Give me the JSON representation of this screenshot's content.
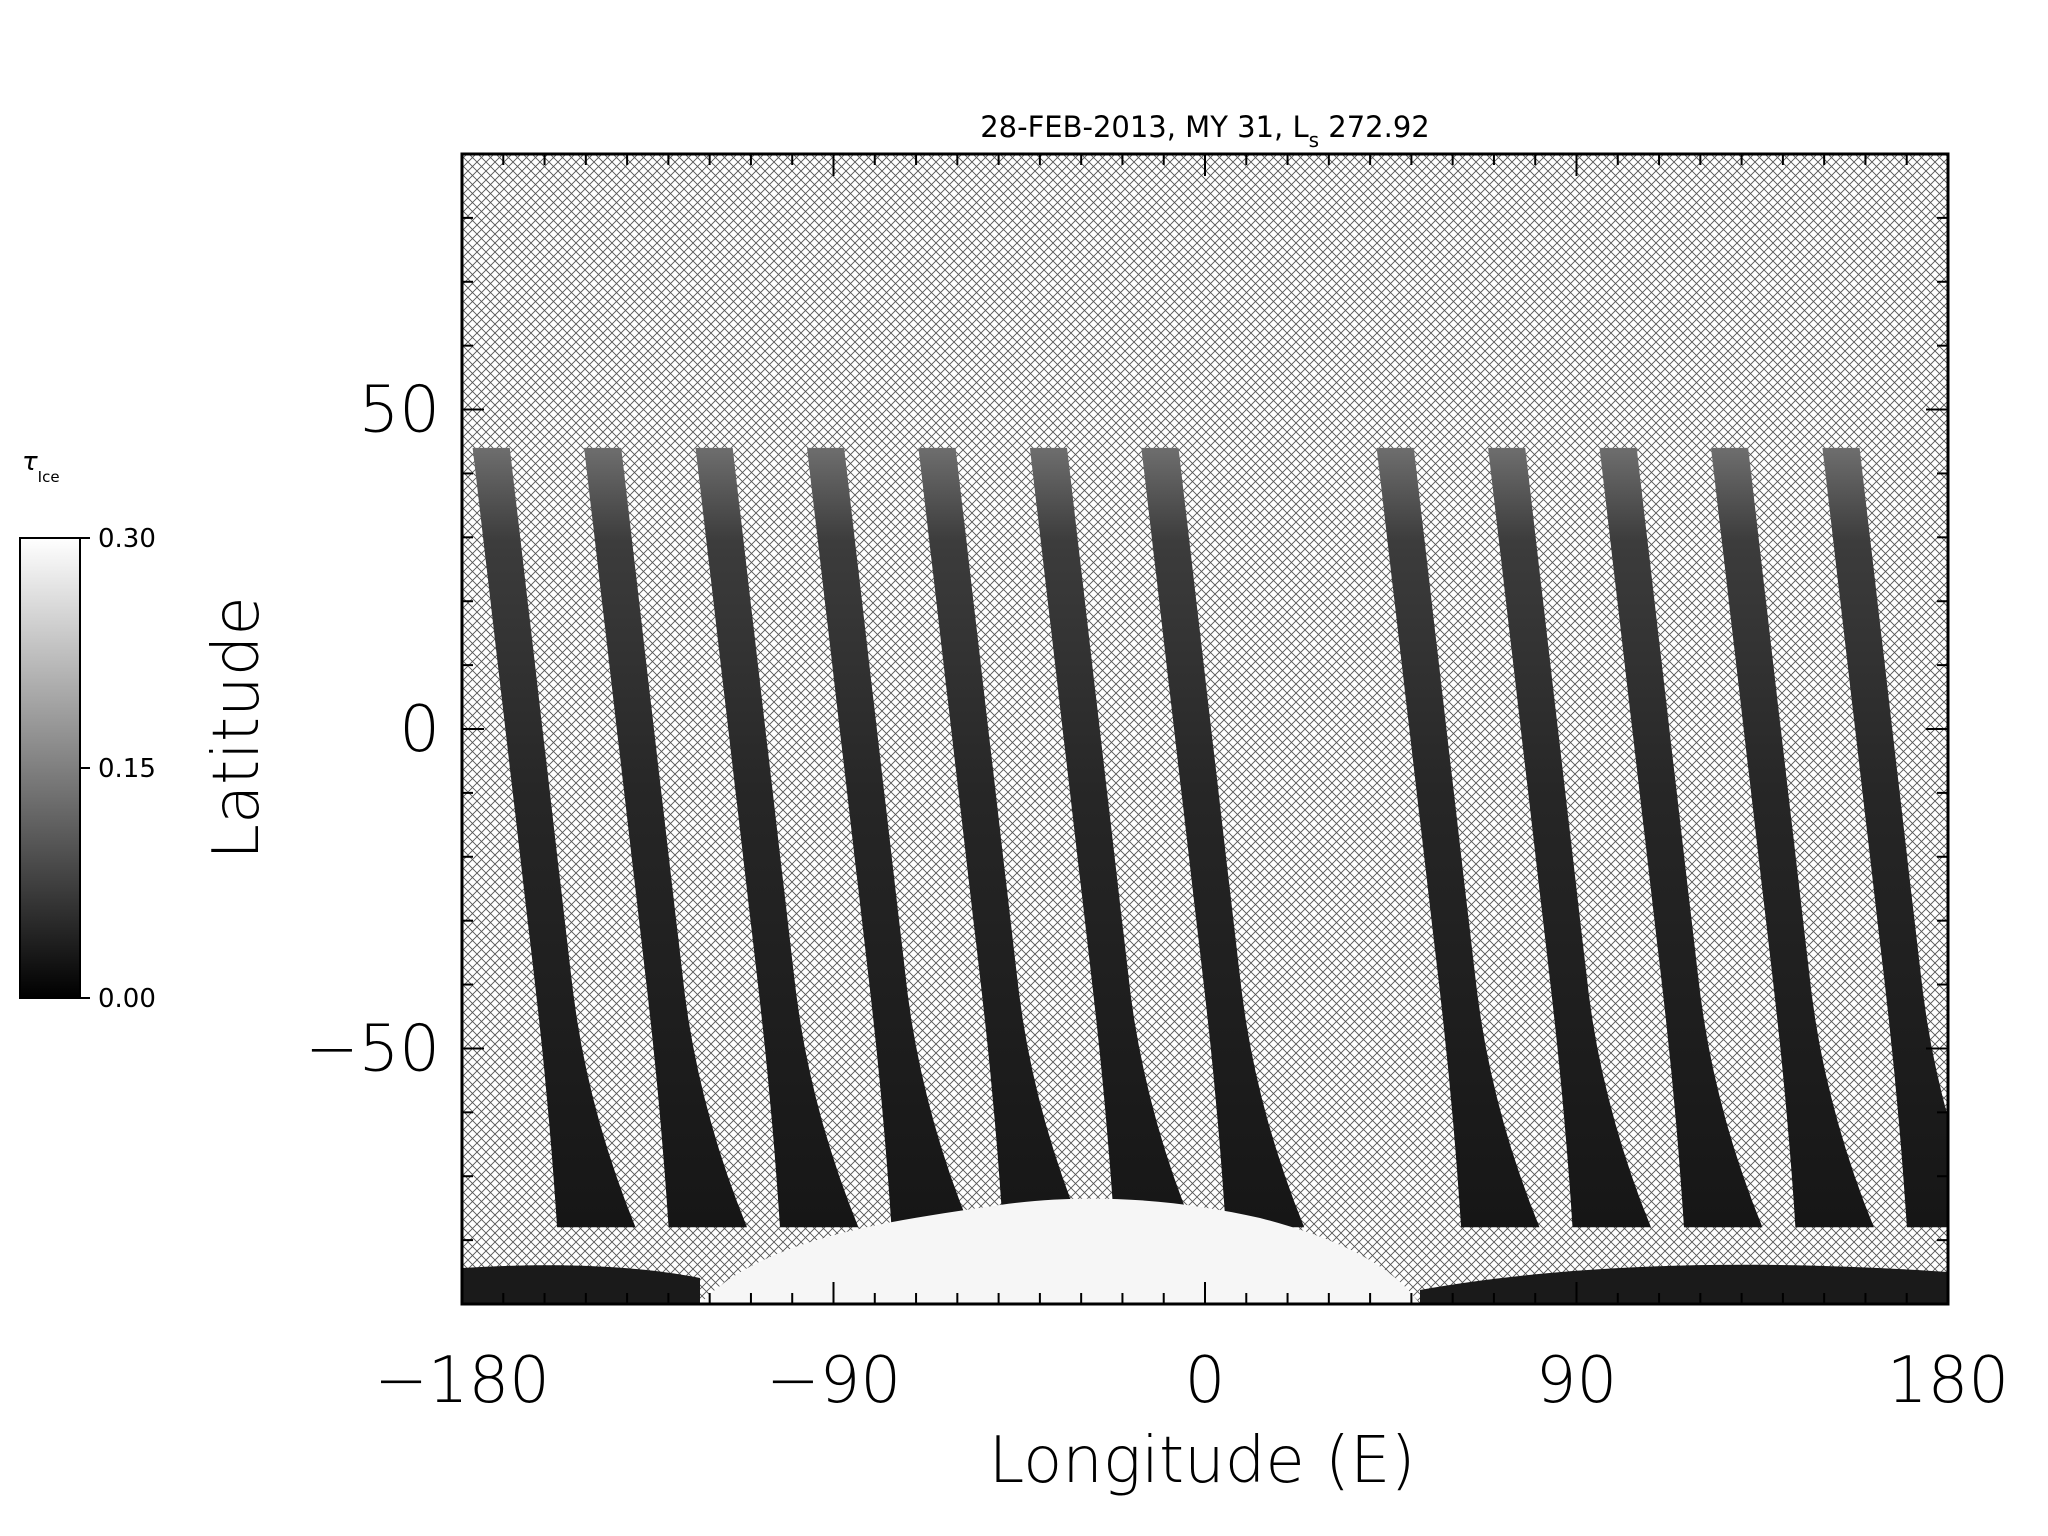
{
  "title": {
    "prefix": "28-FEB-2013, MY 31,  L",
    "subscript": "s",
    "suffix": " 272.92"
  },
  "axes": {
    "xlabel": "Longitude (E)",
    "ylabel": "Latitude",
    "xlim": [
      -180,
      180
    ],
    "ylim": [
      -90,
      90
    ],
    "xticks": [
      -180,
      -90,
      0,
      90,
      180
    ],
    "xtick_labels": [
      "−180",
      "−90",
      "0",
      "90",
      "180"
    ],
    "yticks": [
      -50,
      0,
      50
    ],
    "ytick_labels": [
      "−50",
      "0",
      "50"
    ],
    "no_data_fill": "crosshatch"
  },
  "colorbar": {
    "label_symbol": "τ",
    "label_subscript": "Ice",
    "ticks": [
      0.0,
      0.15,
      0.3
    ],
    "tick_labels": [
      "0.00",
      "0.15",
      "0.30"
    ],
    "colormap": "grayscale",
    "color_low": "#000000",
    "color_high": "#ffffff"
  },
  "swaths": {
    "center_longitudes_at_equator": [
      -165,
      -138,
      -111,
      -84,
      -57,
      -30,
      -3,
      54,
      81,
      108,
      135,
      162
    ],
    "lat_top": 44,
    "lat_bottom": -78
  }
}
